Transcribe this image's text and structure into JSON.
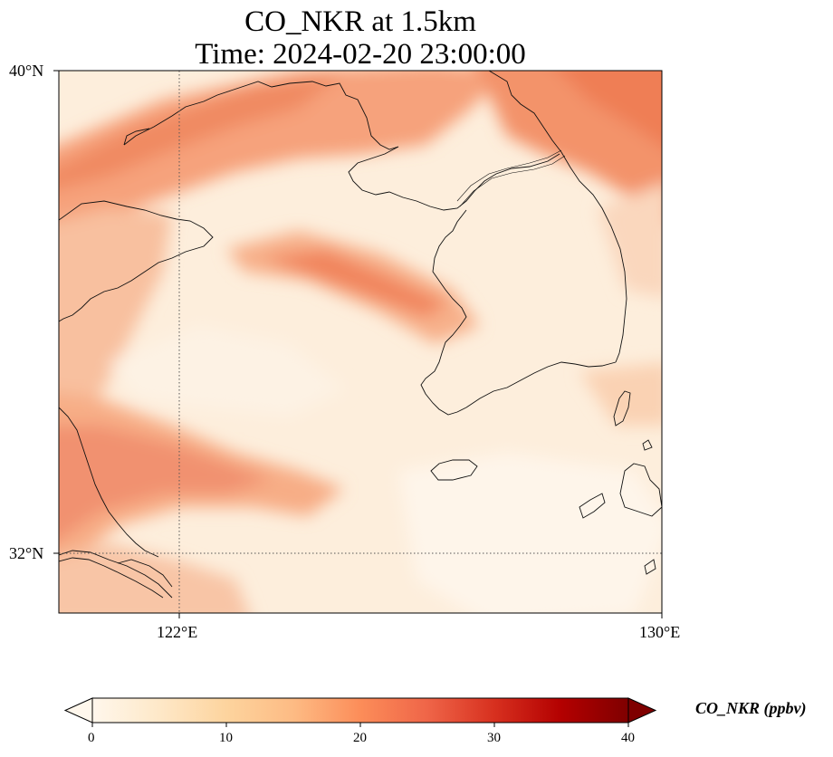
{
  "title": {
    "line1": "CO_NKR at 1.5km",
    "line2": "Time: 2024-02-20 23:00:00"
  },
  "map": {
    "lat_range": [
      31.2,
      40
    ],
    "lon_range": [
      120.4,
      130
    ],
    "lat_labels": [
      {
        "value": 40,
        "text": "40°N"
      },
      {
        "value": 32,
        "text": "32°N"
      }
    ],
    "lon_labels": [
      {
        "value": 122,
        "text": "122°E"
      },
      {
        "value": 130,
        "text": "130°E"
      }
    ],
    "gridlines": {
      "lat": [
        32
      ],
      "lon": [
        122
      ],
      "style": "dotted"
    },
    "field_colormap": "OrRd"
  },
  "colorbar": {
    "label": "CO_NKR (ppbv)",
    "min": 0,
    "max": 40,
    "extend": "both",
    "ticks": [
      {
        "value": 0,
        "text": "0"
      },
      {
        "value": 10,
        "text": "10"
      },
      {
        "value": 20,
        "text": "20"
      },
      {
        "value": 30,
        "text": "30"
      },
      {
        "value": 40,
        "text": "40"
      }
    ],
    "colors": [
      "#fff7ec",
      "#fee8c8",
      "#fdd49e",
      "#fdbb84",
      "#fc8d59",
      "#ef6548",
      "#d7301f",
      "#b30000",
      "#7f0000"
    ]
  }
}
